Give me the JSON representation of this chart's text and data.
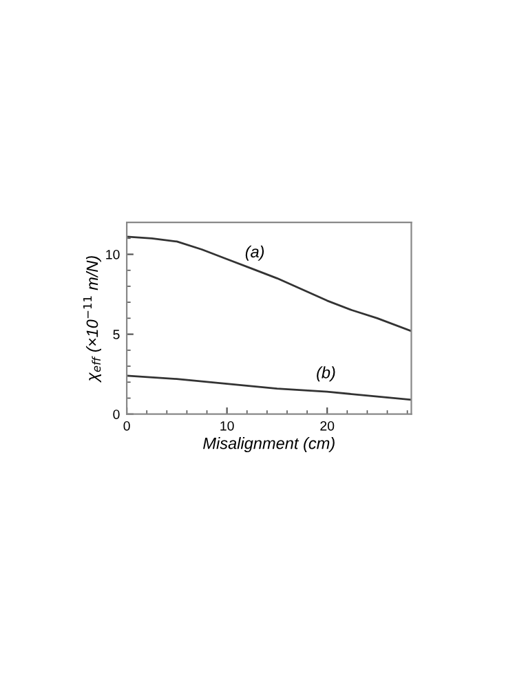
{
  "chart_data": {
    "type": "line",
    "xlabel": "Misalignment (cm)",
    "ylabel": "χ$_{eff}$ (×10$^{−11}$ m/N)",
    "xlim": [
      0,
      28.4
    ],
    "ylim": [
      0,
      12
    ],
    "xticks": [
      0,
      10,
      20
    ],
    "yticks": [
      0,
      5,
      10
    ],
    "grid": false,
    "marker": "none",
    "line_style": "solid",
    "series": [
      {
        "color": "#333333",
        "x": [
          0,
          2.5,
          5,
          7.5,
          10,
          12.5,
          15,
          17.5,
          20,
          22.5,
          25,
          28.4
        ],
        "values": [
          11.1,
          11.0,
          10.8,
          10.3,
          9.7,
          9.1,
          8.5,
          7.8,
          7.1,
          6.5,
          6.0,
          5.2
        ]
      },
      {
        "color": "#333333",
        "x": [
          0,
          5,
          10,
          15,
          20,
          25,
          28.4
        ],
        "values": [
          2.4,
          2.2,
          1.9,
          1.6,
          1.4,
          1.1,
          0.9
        ]
      }
    ],
    "annotations": [
      "(a)",
      "(b)"
    ]
  }
}
